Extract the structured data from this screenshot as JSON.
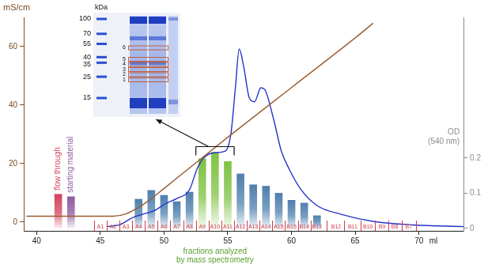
{
  "chart_data": {
    "type": "bar",
    "x_label": "ml",
    "xlim": [
      39,
      73.5
    ],
    "xticks": [
      40,
      45,
      50,
      55,
      60,
      65,
      70
    ],
    "y_label": "mS/cm",
    "ylim": [
      -3,
      70
    ],
    "yticks": [
      0,
      20,
      40,
      60
    ],
    "y2_label": [
      "OD",
      "(540 nm)"
    ],
    "y2lim": [
      -0.007,
      0.6
    ],
    "y2ticks": [
      0,
      0.1,
      0.2
    ],
    "grid": false,
    "series": [
      {
        "type": "line",
        "axis": "y",
        "color": "#9c5b2b",
        "x": [
          39.2,
          46,
          47,
          48,
          49,
          50,
          55,
          60,
          65,
          66.4
        ],
        "values": [
          2,
          2,
          2.8,
          5,
          8,
          11.5,
          29,
          46,
          63,
          68
        ]
      },
      {
        "type": "line",
        "axis": "y2",
        "color": "#2433c8",
        "x": [
          45.5,
          46.5,
          47.5,
          48.3,
          49.2,
          50.1,
          51,
          52,
          52.6,
          53.1,
          53.9,
          54.8,
          55.25,
          55.6,
          55.9,
          56.25,
          56.7,
          57.1,
          57.6,
          57.9,
          58.6,
          59.2,
          59.8,
          60.75,
          62,
          63.9,
          66.4,
          69.5,
          73.5
        ],
        "values": [
          0.005,
          0.01,
          0.03,
          0.04,
          0.05,
          0.07,
          0.085,
          0.11,
          0.17,
          0.2,
          0.215,
          0.22,
          0.27,
          0.4,
          0.51,
          0.46,
          0.37,
          0.36,
          0.4,
          0.395,
          0.31,
          0.22,
          0.17,
          0.11,
          0.065,
          0.04,
          0.02,
          0.01,
          0.005
        ]
      },
      {
        "type": "bar",
        "axis": "y2",
        "x": [
          41.7,
          42.7,
          48,
          49,
          50,
          51,
          52,
          53,
          54,
          55,
          56,
          57,
          58,
          59,
          60,
          61,
          62
        ],
        "values": [
          0.097,
          0.09,
          0.083,
          0.108,
          0.094,
          0.076,
          0.103,
          0.198,
          0.216,
          0.19,
          0.155,
          0.124,
          0.12,
          0.1,
          0.08,
          0.072,
          0.036
        ],
        "colors": [
          "#d2435a",
          "#8e5a9e",
          "#4f7fae",
          "#4f7fae",
          "#4f7fae",
          "#4f7fae",
          "#4f7fae",
          "#7ec242",
          "#7ec242",
          "#7ec242",
          "#4f7fae",
          "#4f7fae",
          "#4f7fae",
          "#4f7fae",
          "#4f7fae",
          "#4f7fae",
          "#4f7fae"
        ],
        "labels": [
          "flow through",
          "starting material",
          null,
          null,
          null,
          null,
          null,
          null,
          null,
          null,
          null,
          null,
          null,
          null,
          null,
          null,
          null
        ]
      }
    ],
    "fractions": {
      "labels": [
        "A1",
        "A2",
        "A3",
        "A4",
        "A5",
        "A6",
        "A7",
        "A8",
        "A9",
        "A10",
        "A11",
        "A12",
        "A13",
        "A14",
        "A15",
        "B15",
        "B14",
        "B13",
        "B12",
        "B11",
        "B10",
        "B9",
        "B8",
        "B7"
      ],
      "x": [
        45,
        46,
        47,
        48,
        49,
        50,
        51,
        52,
        53,
        54,
        55,
        56,
        57,
        58,
        59,
        60,
        61,
        62,
        63.5,
        64.8,
        66,
        67.1,
        68.1,
        69.2
      ]
    },
    "annotation": {
      "text": [
        "fractions analyzed",
        "by mass spectrometry"
      ],
      "fractions": [
        "A9",
        "A10",
        "A11"
      ]
    },
    "inset": {
      "unit": "kDa",
      "markers": [
        100,
        70,
        55,
        40,
        35,
        25,
        15
      ],
      "bands": [
        {
          "number": 6,
          "kDa": 50
        },
        {
          "number": 5,
          "kDa": 38
        },
        {
          "number": 4,
          "kDa": 35
        },
        {
          "number": 3,
          "kDa": 30
        },
        {
          "number": 2,
          "kDa": 27
        },
        {
          "number": 1,
          "kDa": 24
        }
      ]
    }
  }
}
